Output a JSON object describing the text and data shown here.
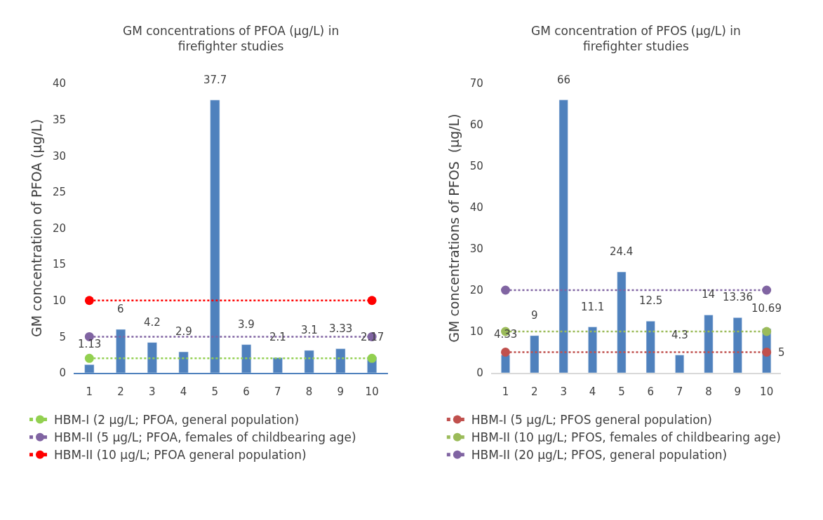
{
  "chart_data": [
    {
      "type": "bar",
      "title": "GM concentrations of PFOA (µg/L) in firefighter studies",
      "ylabel": "GM concentration of PFOA (µg/L)",
      "categories": [
        "1",
        "2",
        "3",
        "4",
        "5",
        "6",
        "7",
        "8",
        "9",
        "10"
      ],
      "ylim": [
        0,
        40
      ],
      "yticks": [
        0,
        5,
        10,
        15,
        20,
        25,
        30,
        35,
        40
      ],
      "grid": false,
      "legend": "bottom",
      "marker": "circle",
      "line_style": "dotted",
      "series": [
        {
          "color": "#4f81bd",
          "values": [
            1.13,
            6,
            4.2,
            2.9,
            37.7,
            3.9,
            2.1,
            3.1,
            3.33,
            2.17
          ],
          "data_labels": true
        },
        {
          "type": "line",
          "name": "HBM-I (2 µg/L; PFOA, general population)",
          "color": "#92d050",
          "values": [
            2,
            null,
            null,
            null,
            null,
            null,
            null,
            null,
            null,
            2
          ]
        },
        {
          "type": "line",
          "name": "HBM-II (5 µg/L; PFOA, females of childbearing age)",
          "color": "#8064a2",
          "values": [
            5,
            null,
            null,
            null,
            null,
            null,
            null,
            null,
            null,
            5
          ]
        },
        {
          "type": "line",
          "name": "HBM-II (10 µg/L; PFOA general population)",
          "color": "#ff0000",
          "values": [
            10,
            null,
            null,
            null,
            null,
            null,
            null,
            null,
            null,
            10
          ]
        }
      ]
    },
    {
      "type": "bar",
      "title": "GM concentration of PFOS (µg/L) in firefighter studies",
      "ylabel": "GM concentrations of PFOS  (µg/L)",
      "categories": [
        "1",
        "2",
        "3",
        "4",
        "5",
        "6",
        "7",
        "8",
        "9",
        "10"
      ],
      "ylim": [
        0,
        70
      ],
      "yticks": [
        0,
        10,
        20,
        30,
        40,
        50,
        60,
        70
      ],
      "grid": false,
      "legend": "bottom",
      "marker": "circle",
      "line_style": "dotted",
      "series": [
        {
          "color": "#4f81bd",
          "values": [
            4.33,
            9,
            66,
            11.1,
            24.4,
            12.5,
            4.3,
            14,
            13.36,
            10.69
          ],
          "data_labels": true
        },
        {
          "type": "line",
          "name": "HBM-I (5 µg/L; PFOS general population)",
          "color": "#c0504d",
          "values": [
            5,
            null,
            null,
            null,
            null,
            null,
            null,
            null,
            null,
            5
          ]
        },
        {
          "type": "line",
          "name": "HBM-II (10 µg/L; PFOS, females of childbearing age)",
          "color": "#9bbb59",
          "values": [
            10,
            null,
            null,
            null,
            null,
            null,
            null,
            null,
            null,
            10
          ]
        },
        {
          "type": "line",
          "name": "HBM-II (20 µg/L; PFOS, general population)",
          "color": "#8064a2",
          "values": [
            20,
            null,
            null,
            null,
            null,
            null,
            null,
            null,
            null,
            20
          ]
        }
      ],
      "annotations": [
        {
          "text": "5",
          "x": "10",
          "y": 5
        }
      ]
    }
  ]
}
